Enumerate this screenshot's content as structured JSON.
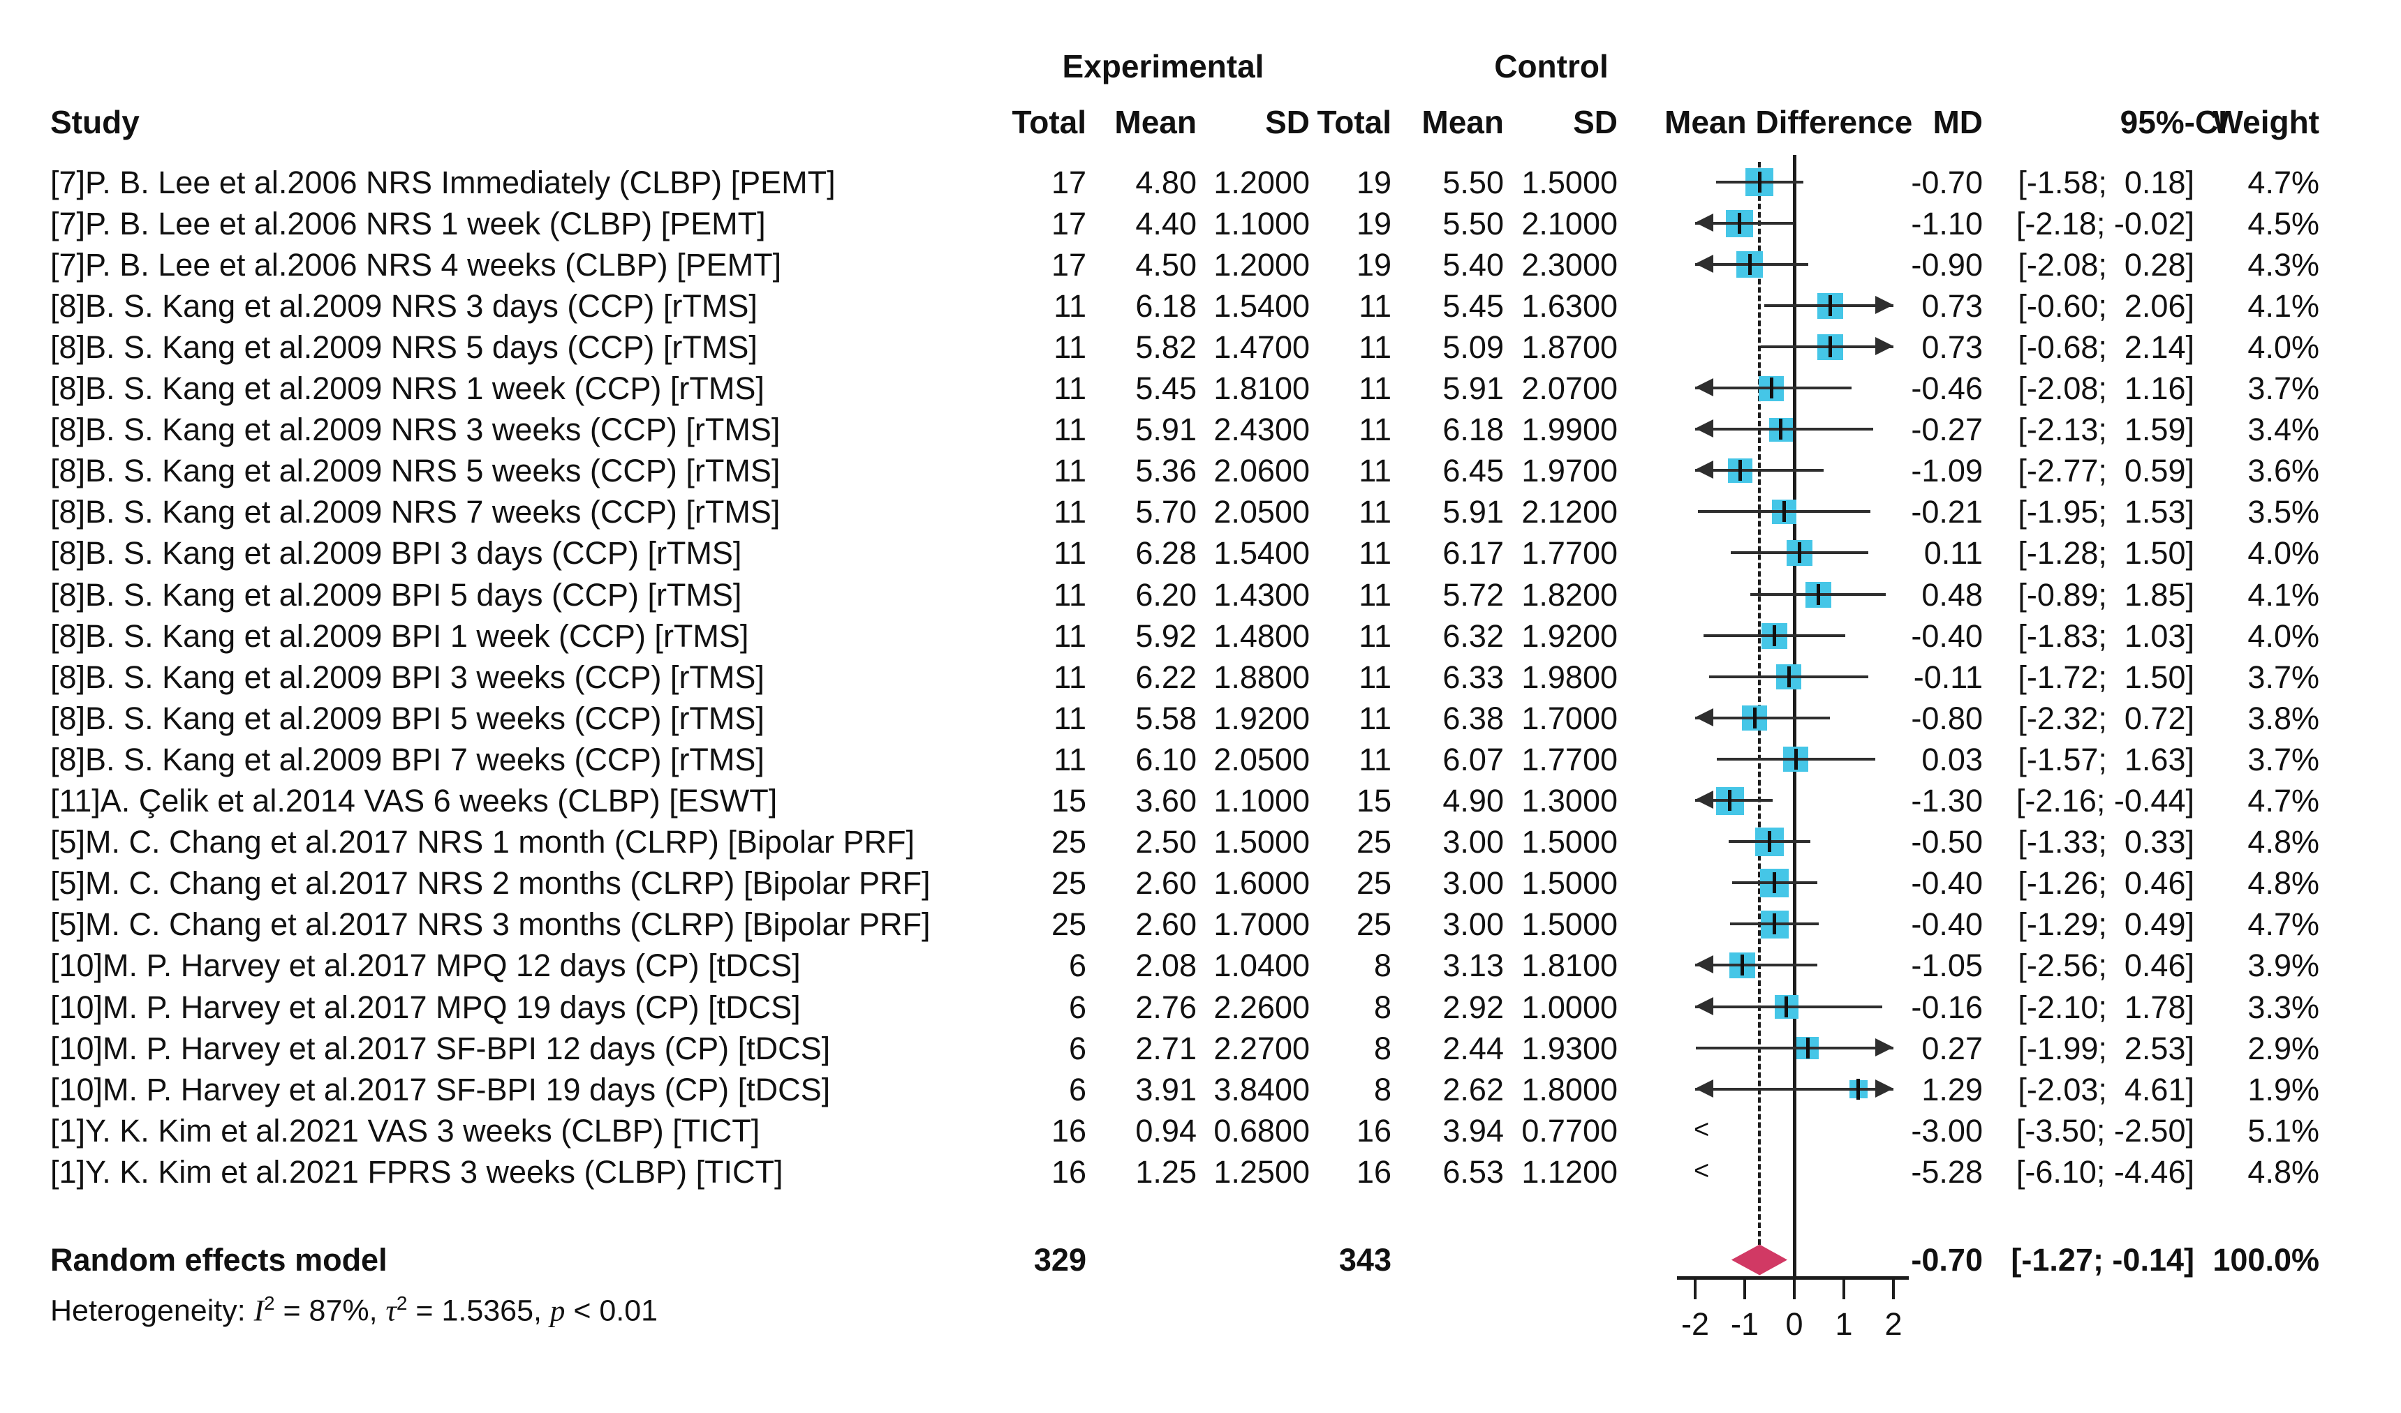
{
  "header": {
    "study": "Study",
    "experimental": "Experimental",
    "control": "Control",
    "total": "Total",
    "mean": "Mean",
    "sd": "SD",
    "mean_difference": "Mean Difference",
    "md": "MD",
    "ci": "95%-CI",
    "weight": "Weight"
  },
  "chart_data": {
    "type": "forest",
    "effect_measure": "MD",
    "colors": {
      "square": "#45c6e7",
      "diamond": "#d13964"
    },
    "axis": {
      "min": -2,
      "max": 2,
      "ticks": [
        "-2",
        "-1",
        "0",
        "1",
        "2"
      ],
      "zero_line": 0,
      "summary_line": -0.7
    },
    "studies": [
      {
        "label": "[7]P. B. Lee et al.2006 NRS Immediately (CLBP) [PEMT]",
        "exp": {
          "total": "17",
          "mean": "4.80",
          "sd": "1.2000"
        },
        "ctrl": {
          "total": "19",
          "mean": "5.50",
          "sd": "1.5000"
        },
        "md": -0.7,
        "ci_low": -1.58,
        "ci_high": 0.18,
        "md_text": "-0.70",
        "ci_text": "[-1.58;  0.18]",
        "weight": 4.7,
        "weight_text": "4.7%"
      },
      {
        "label": "[7]P. B. Lee et al.2006 NRS 1 week (CLBP) [PEMT]",
        "exp": {
          "total": "17",
          "mean": "4.40",
          "sd": "1.1000"
        },
        "ctrl": {
          "total": "19",
          "mean": "5.50",
          "sd": "2.1000"
        },
        "md": -1.1,
        "ci_low": -2.18,
        "ci_high": -0.02,
        "md_text": "-1.10",
        "ci_text": "[-2.18; -0.02]",
        "weight": 4.5,
        "weight_text": "4.5%"
      },
      {
        "label": "[7]P. B. Lee et al.2006 NRS 4 weeks (CLBP) [PEMT]",
        "exp": {
          "total": "17",
          "mean": "4.50",
          "sd": "1.2000"
        },
        "ctrl": {
          "total": "19",
          "mean": "5.40",
          "sd": "2.3000"
        },
        "md": -0.9,
        "ci_low": -2.08,
        "ci_high": 0.28,
        "md_text": "-0.90",
        "ci_text": "[-2.08;  0.28]",
        "weight": 4.3,
        "weight_text": "4.3%"
      },
      {
        "label": "[8]B. S. Kang et al.2009 NRS 3 days (CCP) [rTMS]",
        "exp": {
          "total": "11",
          "mean": "6.18",
          "sd": "1.5400"
        },
        "ctrl": {
          "total": "11",
          "mean": "5.45",
          "sd": "1.6300"
        },
        "md": 0.73,
        "ci_low": -0.6,
        "ci_high": 2.06,
        "md_text": "0.73",
        "ci_text": "[-0.60;  2.06]",
        "weight": 4.1,
        "weight_text": "4.1%"
      },
      {
        "label": "[8]B. S. Kang et al.2009 NRS 5 days (CCP) [rTMS]",
        "exp": {
          "total": "11",
          "mean": "5.82",
          "sd": "1.4700"
        },
        "ctrl": {
          "total": "11",
          "mean": "5.09",
          "sd": "1.8700"
        },
        "md": 0.73,
        "ci_low": -0.68,
        "ci_high": 2.14,
        "md_text": "0.73",
        "ci_text": "[-0.68;  2.14]",
        "weight": 4.0,
        "weight_text": "4.0%"
      },
      {
        "label": "[8]B. S. Kang et al.2009 NRS 1 week (CCP) [rTMS]",
        "exp": {
          "total": "11",
          "mean": "5.45",
          "sd": "1.8100"
        },
        "ctrl": {
          "total": "11",
          "mean": "5.91",
          "sd": "2.0700"
        },
        "md": -0.46,
        "ci_low": -2.08,
        "ci_high": 1.16,
        "md_text": "-0.46",
        "ci_text": "[-2.08;  1.16]",
        "weight": 3.7,
        "weight_text": "3.7%"
      },
      {
        "label": "[8]B. S. Kang et al.2009 NRS 3 weeks (CCP) [rTMS]",
        "exp": {
          "total": "11",
          "mean": "5.91",
          "sd": "2.4300"
        },
        "ctrl": {
          "total": "11",
          "mean": "6.18",
          "sd": "1.9900"
        },
        "md": -0.27,
        "ci_low": -2.13,
        "ci_high": 1.59,
        "md_text": "-0.27",
        "ci_text": "[-2.13;  1.59]",
        "weight": 3.4,
        "weight_text": "3.4%"
      },
      {
        "label": "[8]B. S. Kang et al.2009 NRS 5 weeks (CCP) [rTMS]",
        "exp": {
          "total": "11",
          "mean": "5.36",
          "sd": "2.0600"
        },
        "ctrl": {
          "total": "11",
          "mean": "6.45",
          "sd": "1.9700"
        },
        "md": -1.09,
        "ci_low": -2.77,
        "ci_high": 0.59,
        "md_text": "-1.09",
        "ci_text": "[-2.77;  0.59]",
        "weight": 3.6,
        "weight_text": "3.6%"
      },
      {
        "label": "[8]B. S. Kang et al.2009 NRS 7 weeks (CCP) [rTMS]",
        "exp": {
          "total": "11",
          "mean": "5.70",
          "sd": "2.0500"
        },
        "ctrl": {
          "total": "11",
          "mean": "5.91",
          "sd": "2.1200"
        },
        "md": -0.21,
        "ci_low": -1.95,
        "ci_high": 1.53,
        "md_text": "-0.21",
        "ci_text": "[-1.95;  1.53]",
        "weight": 3.5,
        "weight_text": "3.5%"
      },
      {
        "label": "[8]B. S. Kang et al.2009 BPI 3 days (CCP) [rTMS]",
        "exp": {
          "total": "11",
          "mean": "6.28",
          "sd": "1.5400"
        },
        "ctrl": {
          "total": "11",
          "mean": "6.17",
          "sd": "1.7700"
        },
        "md": 0.11,
        "ci_low": -1.28,
        "ci_high": 1.5,
        "md_text": "0.11",
        "ci_text": "[-1.28;  1.50]",
        "weight": 4.0,
        "weight_text": "4.0%"
      },
      {
        "label": "[8]B. S. Kang et al.2009 BPI 5 days (CCP) [rTMS]",
        "exp": {
          "total": "11",
          "mean": "6.20",
          "sd": "1.4300"
        },
        "ctrl": {
          "total": "11",
          "mean": "5.72",
          "sd": "1.8200"
        },
        "md": 0.48,
        "ci_low": -0.89,
        "ci_high": 1.85,
        "md_text": "0.48",
        "ci_text": "[-0.89;  1.85]",
        "weight": 4.1,
        "weight_text": "4.1%"
      },
      {
        "label": "[8]B. S. Kang et al.2009 BPI 1 week (CCP) [rTMS]",
        "exp": {
          "total": "11",
          "mean": "5.92",
          "sd": "1.4800"
        },
        "ctrl": {
          "total": "11",
          "mean": "6.32",
          "sd": "1.9200"
        },
        "md": -0.4,
        "ci_low": -1.83,
        "ci_high": 1.03,
        "md_text": "-0.40",
        "ci_text": "[-1.83;  1.03]",
        "weight": 4.0,
        "weight_text": "4.0%"
      },
      {
        "label": "[8]B. S. Kang et al.2009 BPI 3 weeks (CCP) [rTMS]",
        "exp": {
          "total": "11",
          "mean": "6.22",
          "sd": "1.8800"
        },
        "ctrl": {
          "total": "11",
          "mean": "6.33",
          "sd": "1.9800"
        },
        "md": -0.11,
        "ci_low": -1.72,
        "ci_high": 1.5,
        "md_text": "-0.11",
        "ci_text": "[-1.72;  1.50]",
        "weight": 3.7,
        "weight_text": "3.7%"
      },
      {
        "label": "[8]B. S. Kang et al.2009 BPI 5 weeks (CCP) [rTMS]",
        "exp": {
          "total": "11",
          "mean": "5.58",
          "sd": "1.9200"
        },
        "ctrl": {
          "total": "11",
          "mean": "6.38",
          "sd": "1.7000"
        },
        "md": -0.8,
        "ci_low": -2.32,
        "ci_high": 0.72,
        "md_text": "-0.80",
        "ci_text": "[-2.32;  0.72]",
        "weight": 3.8,
        "weight_text": "3.8%"
      },
      {
        "label": "[8]B. S. Kang et al.2009 BPI 7 weeks (CCP) [rTMS]",
        "exp": {
          "total": "11",
          "mean": "6.10",
          "sd": "2.0500"
        },
        "ctrl": {
          "total": "11",
          "mean": "6.07",
          "sd": "1.7700"
        },
        "md": 0.03,
        "ci_low": -1.57,
        "ci_high": 1.63,
        "md_text": "0.03",
        "ci_text": "[-1.57;  1.63]",
        "weight": 3.7,
        "weight_text": "3.7%"
      },
      {
        "label": "[11]A. Çelik et al.2014 VAS 6 weeks (CLBP) [ESWT]",
        "exp": {
          "total": "15",
          "mean": "3.60",
          "sd": "1.1000"
        },
        "ctrl": {
          "total": "15",
          "mean": "4.90",
          "sd": "1.3000"
        },
        "md": -1.3,
        "ci_low": -2.16,
        "ci_high": -0.44,
        "md_text": "-1.30",
        "ci_text": "[-2.16; -0.44]",
        "weight": 4.7,
        "weight_text": "4.7%"
      },
      {
        "label": "[5]M. C. Chang et al.2017 NRS 1 month (CLRP) [Bipolar PRF]",
        "exp": {
          "total": "25",
          "mean": "2.50",
          "sd": "1.5000"
        },
        "ctrl": {
          "total": "25",
          "mean": "3.00",
          "sd": "1.5000"
        },
        "md": -0.5,
        "ci_low": -1.33,
        "ci_high": 0.33,
        "md_text": "-0.50",
        "ci_text": "[-1.33;  0.33]",
        "weight": 4.8,
        "weight_text": "4.8%"
      },
      {
        "label": "[5]M. C. Chang et al.2017 NRS 2 months (CLRP) [Bipolar PRF]",
        "exp": {
          "total": "25",
          "mean": "2.60",
          "sd": "1.6000"
        },
        "ctrl": {
          "total": "25",
          "mean": "3.00",
          "sd": "1.5000"
        },
        "md": -0.4,
        "ci_low": -1.26,
        "ci_high": 0.46,
        "md_text": "-0.40",
        "ci_text": "[-1.26;  0.46]",
        "weight": 4.8,
        "weight_text": "4.8%"
      },
      {
        "label": "[5]M. C. Chang et al.2017 NRS 3 months (CLRP) [Bipolar PRF]",
        "exp": {
          "total": "25",
          "mean": "2.60",
          "sd": "1.7000"
        },
        "ctrl": {
          "total": "25",
          "mean": "3.00",
          "sd": "1.5000"
        },
        "md": -0.4,
        "ci_low": -1.29,
        "ci_high": 0.49,
        "md_text": "-0.40",
        "ci_text": "[-1.29;  0.49]",
        "weight": 4.7,
        "weight_text": "4.7%"
      },
      {
        "label": "[10]M. P. Harvey et al.2017 MPQ 12 days (CP) [tDCS]",
        "exp": {
          "total": "6",
          "mean": "2.08",
          "sd": "1.0400"
        },
        "ctrl": {
          "total": "8",
          "mean": "3.13",
          "sd": "1.8100"
        },
        "md": -1.05,
        "ci_low": -2.56,
        "ci_high": 0.46,
        "md_text": "-1.05",
        "ci_text": "[-2.56;  0.46]",
        "weight": 3.9,
        "weight_text": "3.9%"
      },
      {
        "label": "[10]M. P. Harvey et al.2017 MPQ 19 days (CP) [tDCS]",
        "exp": {
          "total": "6",
          "mean": "2.76",
          "sd": "2.2600"
        },
        "ctrl": {
          "total": "8",
          "mean": "2.92",
          "sd": "1.0000"
        },
        "md": -0.16,
        "ci_low": -2.1,
        "ci_high": 1.78,
        "md_text": "-0.16",
        "ci_text": "[-2.10;  1.78]",
        "weight": 3.3,
        "weight_text": "3.3%"
      },
      {
        "label": "[10]M. P. Harvey et al.2017 SF-BPI 12 days (CP) [tDCS]",
        "exp": {
          "total": "6",
          "mean": "2.71",
          "sd": "2.2700"
        },
        "ctrl": {
          "total": "8",
          "mean": "2.44",
          "sd": "1.9300"
        },
        "md": 0.27,
        "ci_low": -1.99,
        "ci_high": 2.53,
        "md_text": "0.27",
        "ci_text": "[-1.99;  2.53]",
        "weight": 2.9,
        "weight_text": "2.9%"
      },
      {
        "label": "[10]M. P. Harvey et al.2017 SF-BPI 19 days (CP) [tDCS]",
        "exp": {
          "total": "6",
          "mean": "3.91",
          "sd": "3.8400"
        },
        "ctrl": {
          "total": "8",
          "mean": "2.62",
          "sd": "1.8000"
        },
        "md": 1.29,
        "ci_low": -2.03,
        "ci_high": 4.61,
        "md_text": "1.29",
        "ci_text": "[-2.03;  4.61]",
        "weight": 1.9,
        "weight_text": "1.9%"
      },
      {
        "label": "[1]Y. K. Kim et al.2021 VAS 3 weeks (CLBP) [TICT]",
        "exp": {
          "total": "16",
          "mean": "0.94",
          "sd": "0.6800"
        },
        "ctrl": {
          "total": "16",
          "mean": "3.94",
          "sd": "0.7700"
        },
        "md": -3.0,
        "ci_low": -3.5,
        "ci_high": -2.5,
        "md_text": "-3.00",
        "ci_text": "[-3.50; -2.50]",
        "weight": 5.1,
        "weight_text": "5.1%"
      },
      {
        "label": "[1]Y. K. Kim et al.2021 FPRS 3 weeks (CLBP) [TICT]",
        "exp": {
          "total": "16",
          "mean": "1.25",
          "sd": "1.2500"
        },
        "ctrl": {
          "total": "16",
          "mean": "6.53",
          "sd": "1.1200"
        },
        "md": -5.28,
        "ci_low": -6.1,
        "ci_high": -4.46,
        "md_text": "-5.28",
        "ci_text": "[-6.10; -4.46]",
        "weight": 4.8,
        "weight_text": "4.8%"
      }
    ],
    "summary": {
      "label": "Random effects model",
      "exp_total": "329",
      "ctrl_total": "343",
      "md": -0.7,
      "ci_low": -1.27,
      "ci_high": -0.14,
      "md_text": "-0.70",
      "ci_text": "[-1.27; -0.14]",
      "weight_text": "100.0%"
    },
    "heterogeneity": {
      "prefix": "Heterogeneity: ",
      "i_label": "I",
      "i_sup": "2",
      "seg1": " = 87%, ",
      "tau": "τ",
      "tau_sup": "2",
      "seg2": " = 1.5365, ",
      "p": "p",
      "seg3": " < 0.01"
    }
  }
}
